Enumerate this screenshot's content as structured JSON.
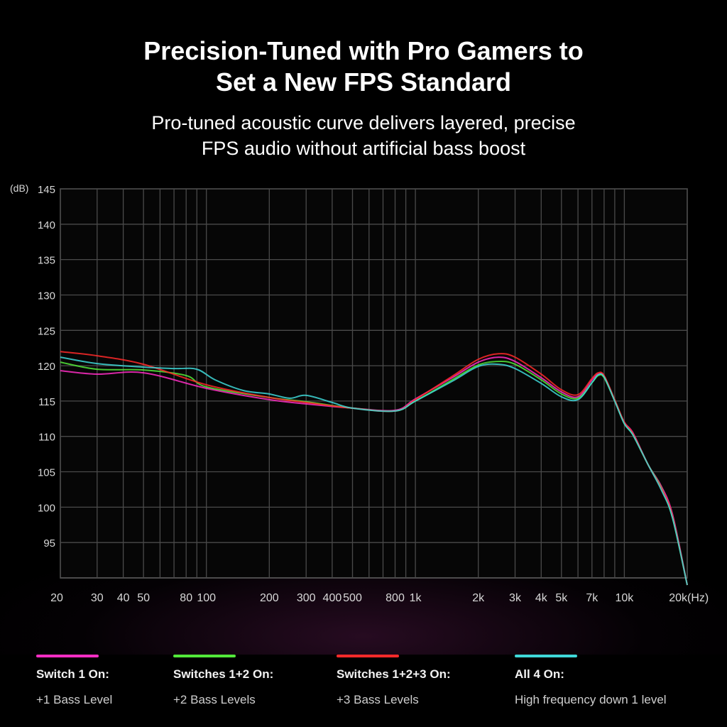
{
  "header": {
    "title_line1": "Precision-Tuned with Pro Gamers to",
    "title_line2": "Set a New FPS Standard",
    "subtitle_line1": "Pro-tuned acoustic curve delivers layered, precise",
    "subtitle_line2": "FPS audio without artificial bass boost"
  },
  "chart_data": {
    "type": "line",
    "title": "",
    "xlabel": "(Hz)",
    "ylabel": "(dB)",
    "x_scale": "log",
    "xlim": [
      20,
      20000
    ],
    "ylim": [
      90,
      145
    ],
    "grid": true,
    "legend_position": "bottom",
    "y_ticks": [
      {
        "value": 145,
        "label": "145"
      },
      {
        "value": 140,
        "label": "140"
      },
      {
        "value": 135,
        "label": "135"
      },
      {
        "value": 130,
        "label": "130"
      },
      {
        "value": 125,
        "label": "125"
      },
      {
        "value": 120,
        "label": "120"
      },
      {
        "value": 115,
        "label": "115"
      },
      {
        "value": 110,
        "label": "110"
      },
      {
        "value": 105,
        "label": "105"
      },
      {
        "value": 100,
        "label": "100"
      },
      {
        "value": 95,
        "label": "95"
      }
    ],
    "x_ticks": [
      {
        "value": 20,
        "label": "20"
      },
      {
        "value": 30,
        "label": "30"
      },
      {
        "value": 40,
        "label": "40"
      },
      {
        "value": 50,
        "label": "50"
      },
      {
        "value": 80,
        "label": "80"
      },
      {
        "value": 100,
        "label": "100"
      },
      {
        "value": 200,
        "label": "200"
      },
      {
        "value": 300,
        "label": "300"
      },
      {
        "value": 400,
        "label": "400"
      },
      {
        "value": 500,
        "label": "500"
      },
      {
        "value": 800,
        "label": "800"
      },
      {
        "value": 1000,
        "label": "1k"
      },
      {
        "value": 2000,
        "label": "2k"
      },
      {
        "value": 3000,
        "label": "3k"
      },
      {
        "value": 4000,
        "label": "4k"
      },
      {
        "value": 5000,
        "label": "5k"
      },
      {
        "value": 7000,
        "label": "7k"
      },
      {
        "value": 10000,
        "label": "10k"
      },
      {
        "value": 20000,
        "label": "20k"
      }
    ],
    "grid_x": [
      20,
      30,
      40,
      50,
      60,
      70,
      80,
      90,
      100,
      200,
      300,
      400,
      500,
      600,
      700,
      800,
      900,
      1000,
      2000,
      3000,
      4000,
      5000,
      6000,
      7000,
      8000,
      9000,
      10000,
      20000
    ],
    "series": [
      {
        "name": "Switch 1 On:",
        "color": "#ff2ec4",
        "points": [
          [
            20,
            119.3
          ],
          [
            30,
            118.8
          ],
          [
            50,
            119.0
          ],
          [
            100,
            116.8
          ],
          [
            200,
            115.2
          ],
          [
            300,
            114.6
          ],
          [
            500,
            114.0
          ],
          [
            800,
            113.7
          ],
          [
            1000,
            115.3
          ],
          [
            1500,
            118.3
          ],
          [
            2000,
            120.5
          ],
          [
            2500,
            121.2
          ],
          [
            3000,
            120.6
          ],
          [
            4000,
            118.3
          ],
          [
            5000,
            116.3
          ],
          [
            6000,
            115.6
          ],
          [
            7000,
            118.0
          ],
          [
            7500,
            118.8
          ],
          [
            8000,
            118.5
          ],
          [
            9000,
            115.0
          ],
          [
            10000,
            112.0
          ],
          [
            11000,
            110.5
          ],
          [
            13000,
            106.0
          ],
          [
            15000,
            103.0
          ],
          [
            17000,
            99.0
          ],
          [
            20000,
            89.0
          ]
        ]
      },
      {
        "name": "Switches 1+2 On:",
        "color": "#53e83a",
        "points": [
          [
            20,
            120.5
          ],
          [
            30,
            119.5
          ],
          [
            50,
            119.4
          ],
          [
            80,
            118.6
          ],
          [
            100,
            117.0
          ],
          [
            200,
            115.5
          ],
          [
            300,
            114.9
          ],
          [
            500,
            114.0
          ],
          [
            800,
            113.6
          ],
          [
            1000,
            115.0
          ],
          [
            1500,
            118.0
          ],
          [
            2000,
            120.1
          ],
          [
            2500,
            120.6
          ],
          [
            3000,
            120.2
          ],
          [
            4000,
            118.0
          ],
          [
            5000,
            116.0
          ],
          [
            6000,
            115.4
          ],
          [
            7000,
            117.6
          ],
          [
            7500,
            118.6
          ],
          [
            8000,
            118.3
          ],
          [
            9000,
            115.0
          ],
          [
            10000,
            111.8
          ],
          [
            11000,
            110.2
          ],
          [
            13000,
            106.0
          ],
          [
            15000,
            102.8
          ],
          [
            17000,
            98.5
          ],
          [
            20000,
            89.0
          ]
        ]
      },
      {
        "name": "Switches 1+2+3 On:",
        "color": "#ff2a2a",
        "points": [
          [
            20,
            122.0
          ],
          [
            30,
            121.4
          ],
          [
            50,
            120.2
          ],
          [
            100,
            117.3
          ],
          [
            200,
            115.5
          ],
          [
            300,
            114.8
          ],
          [
            500,
            114.0
          ],
          [
            800,
            113.6
          ],
          [
            1000,
            115.2
          ],
          [
            1500,
            118.5
          ],
          [
            2000,
            120.9
          ],
          [
            2500,
            121.7
          ],
          [
            3000,
            121.2
          ],
          [
            4000,
            118.8
          ],
          [
            5000,
            116.6
          ],
          [
            6000,
            115.9
          ],
          [
            7000,
            118.2
          ],
          [
            7500,
            119.0
          ],
          [
            8000,
            118.6
          ],
          [
            9000,
            115.2
          ],
          [
            10000,
            112.0
          ],
          [
            11000,
            110.4
          ],
          [
            13000,
            106.0
          ],
          [
            15000,
            102.7
          ],
          [
            17000,
            98.8
          ],
          [
            20000,
            89.0
          ]
        ]
      },
      {
        "name": "All 4 On:",
        "color": "#3fd8d8",
        "points": [
          [
            20,
            121.2
          ],
          [
            30,
            120.3
          ],
          [
            50,
            119.8
          ],
          [
            70,
            119.6
          ],
          [
            90,
            119.5
          ],
          [
            110,
            118.0
          ],
          [
            150,
            116.5
          ],
          [
            200,
            116.0
          ],
          [
            250,
            115.4
          ],
          [
            300,
            115.8
          ],
          [
            400,
            114.8
          ],
          [
            500,
            114.0
          ],
          [
            800,
            113.6
          ],
          [
            1000,
            115.0
          ],
          [
            1500,
            117.8
          ],
          [
            2000,
            119.9
          ],
          [
            2500,
            120.2
          ],
          [
            3000,
            119.6
          ],
          [
            4000,
            117.5
          ],
          [
            5000,
            115.6
          ],
          [
            6000,
            115.2
          ],
          [
            7000,
            117.6
          ],
          [
            7500,
            118.7
          ],
          [
            8000,
            118.4
          ],
          [
            9000,
            115.0
          ],
          [
            10000,
            111.8
          ],
          [
            11000,
            110.2
          ],
          [
            13000,
            106.0
          ],
          [
            15000,
            102.5
          ],
          [
            17000,
            98.5
          ],
          [
            20000,
            89.0
          ]
        ]
      }
    ]
  },
  "legend": [
    {
      "name": "Switch 1 On:",
      "desc": "+1 Bass Level",
      "color": "#ff2ec4"
    },
    {
      "name": "Switches 1+2 On:",
      "desc": "+2 Bass Levels",
      "color": "#53e83a"
    },
    {
      "name": "Switches 1+2+3 On:",
      "desc": "+3 Bass Levels",
      "color": "#ff2a2a"
    },
    {
      "name": "All 4 On:",
      "desc": "High frequency down 1 level",
      "color": "#3fd8d8"
    }
  ]
}
